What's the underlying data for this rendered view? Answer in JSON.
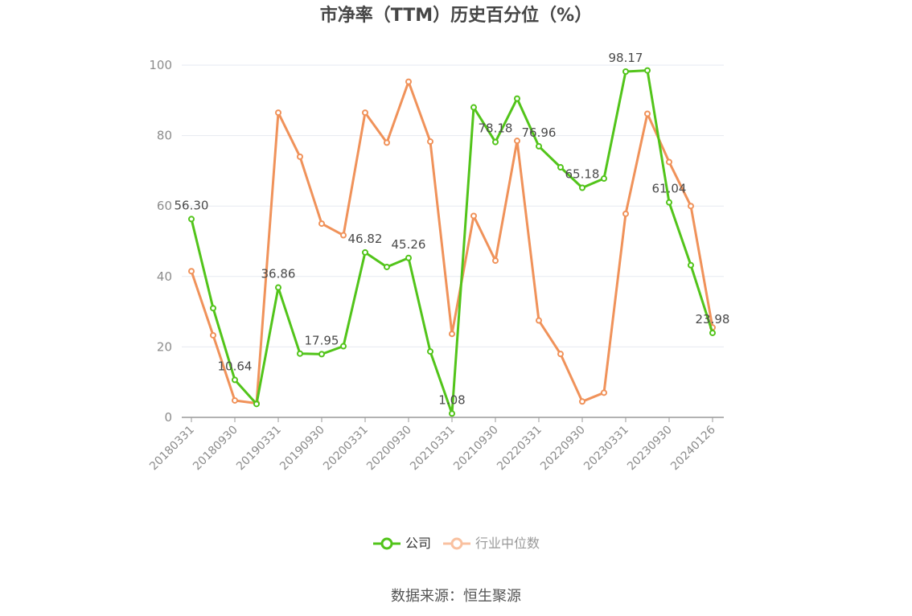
{
  "chart_data": {
    "type": "line",
    "title": "市净率（TTM）历史百分位（%）",
    "source": "数据来源：恒生聚源",
    "ylim": [
      0,
      100
    ],
    "yticks": [
      "0",
      "20",
      "40",
      "60",
      "80",
      "100"
    ],
    "x_tick_labels": [
      "20180331",
      "20180930",
      "20190331",
      "20190930",
      "20200331",
      "20200930",
      "20210331",
      "20210930",
      "20220331",
      "20220930",
      "20230331",
      "20230930",
      "20240126"
    ],
    "x": [
      "20180331",
      "20180630",
      "20180930",
      "20181231",
      "20190331",
      "20190630",
      "20190930",
      "20191231",
      "20200331",
      "20200630",
      "20200930",
      "20201231",
      "20210331",
      "20210630",
      "20210930",
      "20211231",
      "20220331",
      "20220630",
      "20220930",
      "20221231",
      "20230331",
      "20230630",
      "20230930",
      "20231231",
      "20240126"
    ],
    "grid": true,
    "legend_position": "bottom",
    "series": [
      {
        "name": "公司",
        "color": "#52c41a",
        "values": [
          56.3,
          31.0,
          10.64,
          3.8,
          36.86,
          18.1,
          17.95,
          20.2,
          46.82,
          42.7,
          45.26,
          18.7,
          1.08,
          88.0,
          78.18,
          90.5,
          76.96,
          71.0,
          65.18,
          67.8,
          98.17,
          98.5,
          61.04,
          43.2,
          23.98
        ],
        "labels": [
          "56.30",
          "",
          "10.64",
          "",
          "36.86",
          "",
          "17.95",
          "",
          "46.82",
          "",
          "45.26",
          "",
          "1.08",
          "",
          "78.18",
          "",
          "76.96",
          "",
          "65.18",
          "",
          "98.17",
          "",
          "61.04",
          "",
          "23.98"
        ]
      },
      {
        "name": "行业中位数",
        "color": "#f0925a",
        "values": [
          41.5,
          23.3,
          4.8,
          4.0,
          86.5,
          74.0,
          55.0,
          51.7,
          86.5,
          78.0,
          95.3,
          78.3,
          23.7,
          57.2,
          44.5,
          78.5,
          27.5,
          18.0,
          4.5,
          7.0,
          57.8,
          86.2,
          72.5,
          60.0,
          25.5
        ]
      }
    ]
  }
}
